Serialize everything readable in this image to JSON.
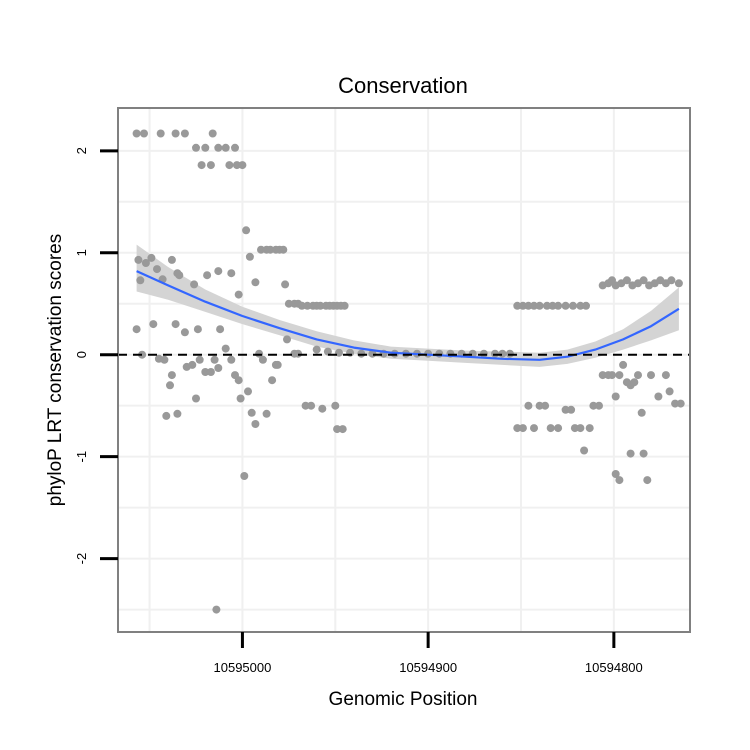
{
  "chart_data": {
    "type": "scatter",
    "title": "Conservation",
    "xlabel": "Genomic Position",
    "ylabel": "phyloP LRT conservation scores",
    "x_reversed": true,
    "xlim": [
      10595067,
      10594759
    ],
    "ylim": [
      -2.72,
      2.42
    ],
    "x_ticks": [
      10595000,
      10594900,
      10594800
    ],
    "x_tick_labels": [
      "10595000",
      "10594900",
      "10594800"
    ],
    "y_ticks": [
      2,
      1,
      0,
      -1,
      -2
    ],
    "y_tick_labels": [
      "2",
      "1",
      "0",
      "-1",
      "-2"
    ],
    "reference_line": {
      "y": 0,
      "style": "dashed"
    },
    "grid": true,
    "colors": {
      "points": "#999999",
      "smooth_line": "#3366FF",
      "confidence_band": "#D4D4D4",
      "grid": "#F0F0F0",
      "panel_border": "#808080"
    },
    "series": [
      {
        "name": "phyloP scores",
        "kind": "points",
        "points": [
          [
            10595057,
            2.17
          ],
          [
            10595053,
            2.17
          ],
          [
            10595044,
            2.17
          ],
          [
            10595036,
            2.17
          ],
          [
            10595031,
            2.17
          ],
          [
            10595025,
            2.03
          ],
          [
            10595022,
            1.86
          ],
          [
            10595020,
            2.03
          ],
          [
            10595017,
            1.86
          ],
          [
            10595016,
            2.17
          ],
          [
            10595013,
            2.03
          ],
          [
            10595009,
            2.03
          ],
          [
            10595007,
            1.86
          ],
          [
            10595004,
            2.03
          ],
          [
            10595003,
            1.86
          ],
          [
            10595000,
            1.86
          ],
          [
            10595056,
            0.93
          ],
          [
            10595055,
            0.73
          ],
          [
            10595052,
            0.9
          ],
          [
            10595049,
            0.95
          ],
          [
            10595046,
            0.84
          ],
          [
            10595043,
            0.74
          ],
          [
            10595038,
            0.93
          ],
          [
            10595035,
            0.8
          ],
          [
            10595034,
            0.78
          ],
          [
            10595026,
            0.69
          ],
          [
            10595019,
            0.78
          ],
          [
            10595013,
            0.82
          ],
          [
            10595006,
            0.8
          ],
          [
            10595002,
            0.59
          ],
          [
            10594998,
            1.22
          ],
          [
            10594996,
            0.96
          ],
          [
            10594993,
            0.71
          ],
          [
            10594990,
            1.03
          ],
          [
            10594987,
            1.03
          ],
          [
            10594985,
            1.03
          ],
          [
            10594982,
            1.03
          ],
          [
            10594980,
            1.03
          ],
          [
            10594978,
            1.03
          ],
          [
            10594977,
            0.69
          ],
          [
            10594975,
            0.5
          ],
          [
            10594972,
            0.5
          ],
          [
            10594970,
            0.5
          ],
          [
            10595057,
            0.25
          ],
          [
            10595054,
            0.0
          ],
          [
            10595048,
            0.3
          ],
          [
            10595045,
            -0.04
          ],
          [
            10595042,
            -0.05
          ],
          [
            10595041,
            -0.6
          ],
          [
            10595039,
            -0.3
          ],
          [
            10595038,
            -0.2
          ],
          [
            10595036,
            0.3
          ],
          [
            10595035,
            -0.58
          ],
          [
            10595031,
            0.22
          ],
          [
            10595030,
            -0.12
          ],
          [
            10595027,
            -0.1
          ],
          [
            10595025,
            -0.43
          ],
          [
            10595024,
            0.25
          ],
          [
            10595023,
            -0.05
          ],
          [
            10595020,
            -0.17
          ],
          [
            10595017,
            -0.17
          ],
          [
            10595015,
            -0.05
          ],
          [
            10595013,
            -0.13
          ],
          [
            10595012,
            0.25
          ],
          [
            10595009,
            0.06
          ],
          [
            10595006,
            -0.05
          ],
          [
            10595004,
            -0.2
          ],
          [
            10595002,
            -0.25
          ],
          [
            10595001,
            -0.43
          ],
          [
            10594999,
            -1.19
          ],
          [
            10594997,
            -0.36
          ],
          [
            10594995,
            -0.57
          ],
          [
            10594993,
            -0.68
          ],
          [
            10594991,
            0.01
          ],
          [
            10594989,
            -0.05
          ],
          [
            10594987,
            -0.58
          ],
          [
            10594984,
            -0.25
          ],
          [
            10594982,
            -0.1
          ],
          [
            10594981,
            -0.1
          ],
          [
            10594976,
            0.15
          ],
          [
            10594972,
            0.01
          ],
          [
            10594970,
            0.01
          ],
          [
            10595014,
            -2.5
          ],
          [
            10594968,
            0.48
          ],
          [
            10594965,
            0.48
          ],
          [
            10594962,
            0.48
          ],
          [
            10594960,
            0.48
          ],
          [
            10594958,
            0.48
          ],
          [
            10594955,
            0.48
          ],
          [
            10594953,
            0.48
          ],
          [
            10594951,
            0.48
          ],
          [
            10594949,
            0.48
          ],
          [
            10594947,
            0.48
          ],
          [
            10594945,
            0.48
          ],
          [
            10594966,
            -0.5
          ],
          [
            10594963,
            -0.5
          ],
          [
            10594957,
            -0.53
          ],
          [
            10594950,
            -0.5
          ],
          [
            10594949,
            -0.73
          ],
          [
            10594946,
            -0.73
          ],
          [
            10594960,
            0.05
          ],
          [
            10594954,
            0.03
          ],
          [
            10594948,
            0.02
          ],
          [
            10594942,
            0.02
          ],
          [
            10594936,
            0.01
          ],
          [
            10594930,
            0.01
          ],
          [
            10594924,
            0.01
          ],
          [
            10594918,
            0.01
          ],
          [
            10594912,
            0.01
          ],
          [
            10594906,
            0.01
          ],
          [
            10594900,
            0.01
          ],
          [
            10594894,
            0.01
          ],
          [
            10594888,
            0.01
          ],
          [
            10594882,
            0.01
          ],
          [
            10594876,
            0.01
          ],
          [
            10594870,
            0.01
          ],
          [
            10594864,
            0.01
          ],
          [
            10594860,
            0.01
          ],
          [
            10594856,
            0.01
          ],
          [
            10594852,
            0.48
          ],
          [
            10594849,
            0.48
          ],
          [
            10594846,
            0.48
          ],
          [
            10594843,
            0.48
          ],
          [
            10594840,
            0.48
          ],
          [
            10594836,
            0.48
          ],
          [
            10594833,
            0.48
          ],
          [
            10594830,
            0.48
          ],
          [
            10594826,
            0.48
          ],
          [
            10594822,
            0.48
          ],
          [
            10594818,
            0.48
          ],
          [
            10594815,
            0.48
          ],
          [
            10594852,
            -0.72
          ],
          [
            10594849,
            -0.72
          ],
          [
            10594846,
            -0.5
          ],
          [
            10594843,
            -0.72
          ],
          [
            10594840,
            -0.5
          ],
          [
            10594837,
            -0.5
          ],
          [
            10594834,
            -0.72
          ],
          [
            10594830,
            -0.72
          ],
          [
            10594826,
            -0.54
          ],
          [
            10594823,
            -0.54
          ],
          [
            10594821,
            -0.72
          ],
          [
            10594818,
            -0.72
          ],
          [
            10594816,
            -0.94
          ],
          [
            10594813,
            -0.72
          ],
          [
            10594811,
            -0.5
          ],
          [
            10594808,
            -0.5
          ],
          [
            10594806,
            0.68
          ],
          [
            10594803,
            0.7
          ],
          [
            10594801,
            0.73
          ],
          [
            10594799,
            0.68
          ],
          [
            10594796,
            0.7
          ],
          [
            10594793,
            0.73
          ],
          [
            10594790,
            0.68
          ],
          [
            10594787,
            0.7
          ],
          [
            10594784,
            0.73
          ],
          [
            10594781,
            0.68
          ],
          [
            10594778,
            0.7
          ],
          [
            10594775,
            0.73
          ],
          [
            10594772,
            0.7
          ],
          [
            10594769,
            0.73
          ],
          [
            10594765,
            0.7
          ],
          [
            10594806,
            -0.2
          ],
          [
            10594803,
            -0.2
          ],
          [
            10594801,
            -0.2
          ],
          [
            10594799,
            -0.41
          ],
          [
            10594797,
            -0.2
          ],
          [
            10594799,
            -1.17
          ],
          [
            10594797,
            -1.23
          ],
          [
            10594795,
            -0.1
          ],
          [
            10594793,
            -0.27
          ],
          [
            10594791,
            -0.3
          ],
          [
            10594791,
            -0.97
          ],
          [
            10594789,
            -0.27
          ],
          [
            10594787,
            -0.2
          ],
          [
            10594785,
            -0.57
          ],
          [
            10594784,
            -0.97
          ],
          [
            10594782,
            -1.23
          ],
          [
            10594780,
            -0.2
          ],
          [
            10594776,
            -0.41
          ],
          [
            10594772,
            -0.2
          ],
          [
            10594770,
            -0.36
          ],
          [
            10594767,
            -0.48
          ],
          [
            10594764,
            -0.48
          ]
        ]
      },
      {
        "name": "smoothed fit",
        "kind": "line",
        "x": [
          10595057,
          10595040,
          10595020,
          10595000,
          10594980,
          10594960,
          10594940,
          10594920,
          10594900,
          10594880,
          10594860,
          10594840,
          10594825,
          10594810,
          10594795,
          10594780,
          10594765
        ],
        "y": [
          0.82,
          0.68,
          0.52,
          0.38,
          0.26,
          0.15,
          0.07,
          0.02,
          0.0,
          -0.02,
          -0.04,
          -0.05,
          -0.02,
          0.05,
          0.15,
          0.28,
          0.45
        ]
      },
      {
        "name": "confidence band",
        "kind": "band",
        "x": [
          10595057,
          10595040,
          10595020,
          10595000,
          10594980,
          10594960,
          10594940,
          10594920,
          10594900,
          10594880,
          10594860,
          10594840,
          10594825,
          10594810,
          10594795,
          10594780,
          10594765
        ],
        "lower": [
          0.62,
          0.54,
          0.42,
          0.3,
          0.19,
          0.08,
          0.01,
          -0.04,
          -0.06,
          -0.08,
          -0.1,
          -0.12,
          -0.09,
          -0.03,
          0.05,
          0.14,
          0.24
        ],
        "upper": [
          1.08,
          0.86,
          0.64,
          0.47,
          0.34,
          0.23,
          0.14,
          0.08,
          0.06,
          0.04,
          0.03,
          0.02,
          0.05,
          0.13,
          0.25,
          0.43,
          0.66
        ]
      }
    ]
  }
}
